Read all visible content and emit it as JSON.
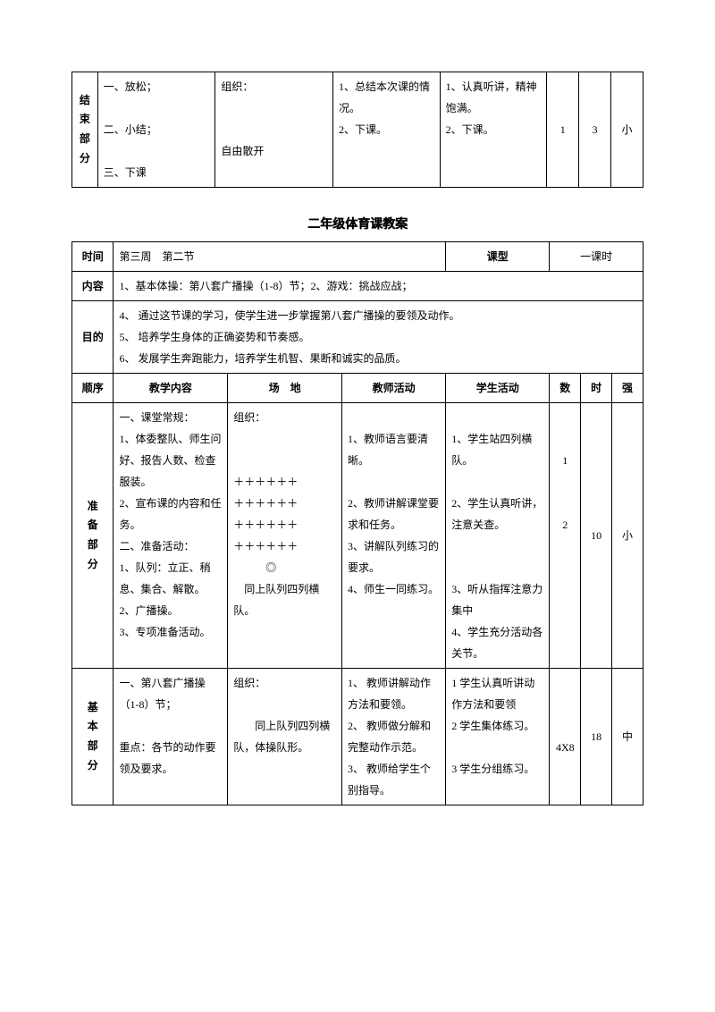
{
  "table1": {
    "section_label": "结束部分",
    "content": "一、放松；\n\n二、小结；\n\n三、下课",
    "venue": "组织：\n\n\n自由散开",
    "teacher": "1、总结本次课的情况。\n2、下课。",
    "student": "1、认真听讲，精神饱满。\n2、下课。",
    "num": "1",
    "time": "3",
    "intensity": "小"
  },
  "page_title": "二年级体育课教案",
  "table2": {
    "headers": {
      "time": "时间",
      "time_val": "第三周　第二节",
      "class_type": "课型",
      "class_type_val": "一课时",
      "content": "内容",
      "content_val": "1、基本体操：第八套广播操（1-8）节；2、游戏：挑战应战；",
      "purpose": "目的",
      "purpose_val": "4、 通过这节课的学习，使学生进一步掌握第八套广播操的要领及动作。\n5、 培养学生身体的正确姿势和节奏感。\n6、 发展学生奔跑能力，培养学生机智、果断和诚实的品质。",
      "order": "顺序",
      "teach_content": "教学内容",
      "venue": "场　地",
      "teacher_act": "教师活动",
      "student_act": "学生活动",
      "num": "数",
      "time_col": "时",
      "intensity": "强"
    },
    "row_prep": {
      "label": "准备部分",
      "content": "一、课堂常规：\n1、体委整队、师生问好、报告人数、检查服装。\n2、宣布课的内容和任务。\n二、准备活动：\n1、队列：立正、稍息、集合、解散。\n2、广播操。\n3、专项准备活动。",
      "venue": "组织：\n\n\n＋＋＋＋＋＋\n＋＋＋＋＋＋\n＋＋＋＋＋＋\n＋＋＋＋＋＋\n　　　◎\n　同上队列四列横队。",
      "teacher": "\n1、教师语言要清晰。\n\n2、教师讲解课堂要求和任务。\n3、讲解队列练习的要求。\n4、师生一同练习。",
      "student": "\n1、学生站四列横队。\n\n2、学生认真听讲，注意关查。\n\n\n3、听从指挥注意力集中\n4、学生充分活动各关节。",
      "num": "\n\n1\n\n\n2",
      "time": "10",
      "intensity": "小"
    },
    "row_basic": {
      "label": "基本部分",
      "content": "一、第八套广播操（1-8）节；\n\n重点：各节的动作要领及要求。",
      "venue": "组织：\n\n　　同上队列四列横队，体操队形。",
      "teacher": "1、 教师讲解动作方法和要领。\n2、 教师做分解和完整动作示范。\n3、 教师给学生个别指导。",
      "student": "1 学生认真听讲动作方法和要领\n2 学生集体练习。\n\n3 学生分组练习。",
      "num": "\n\n\n4X8",
      "time": "18",
      "intensity": "中"
    }
  }
}
